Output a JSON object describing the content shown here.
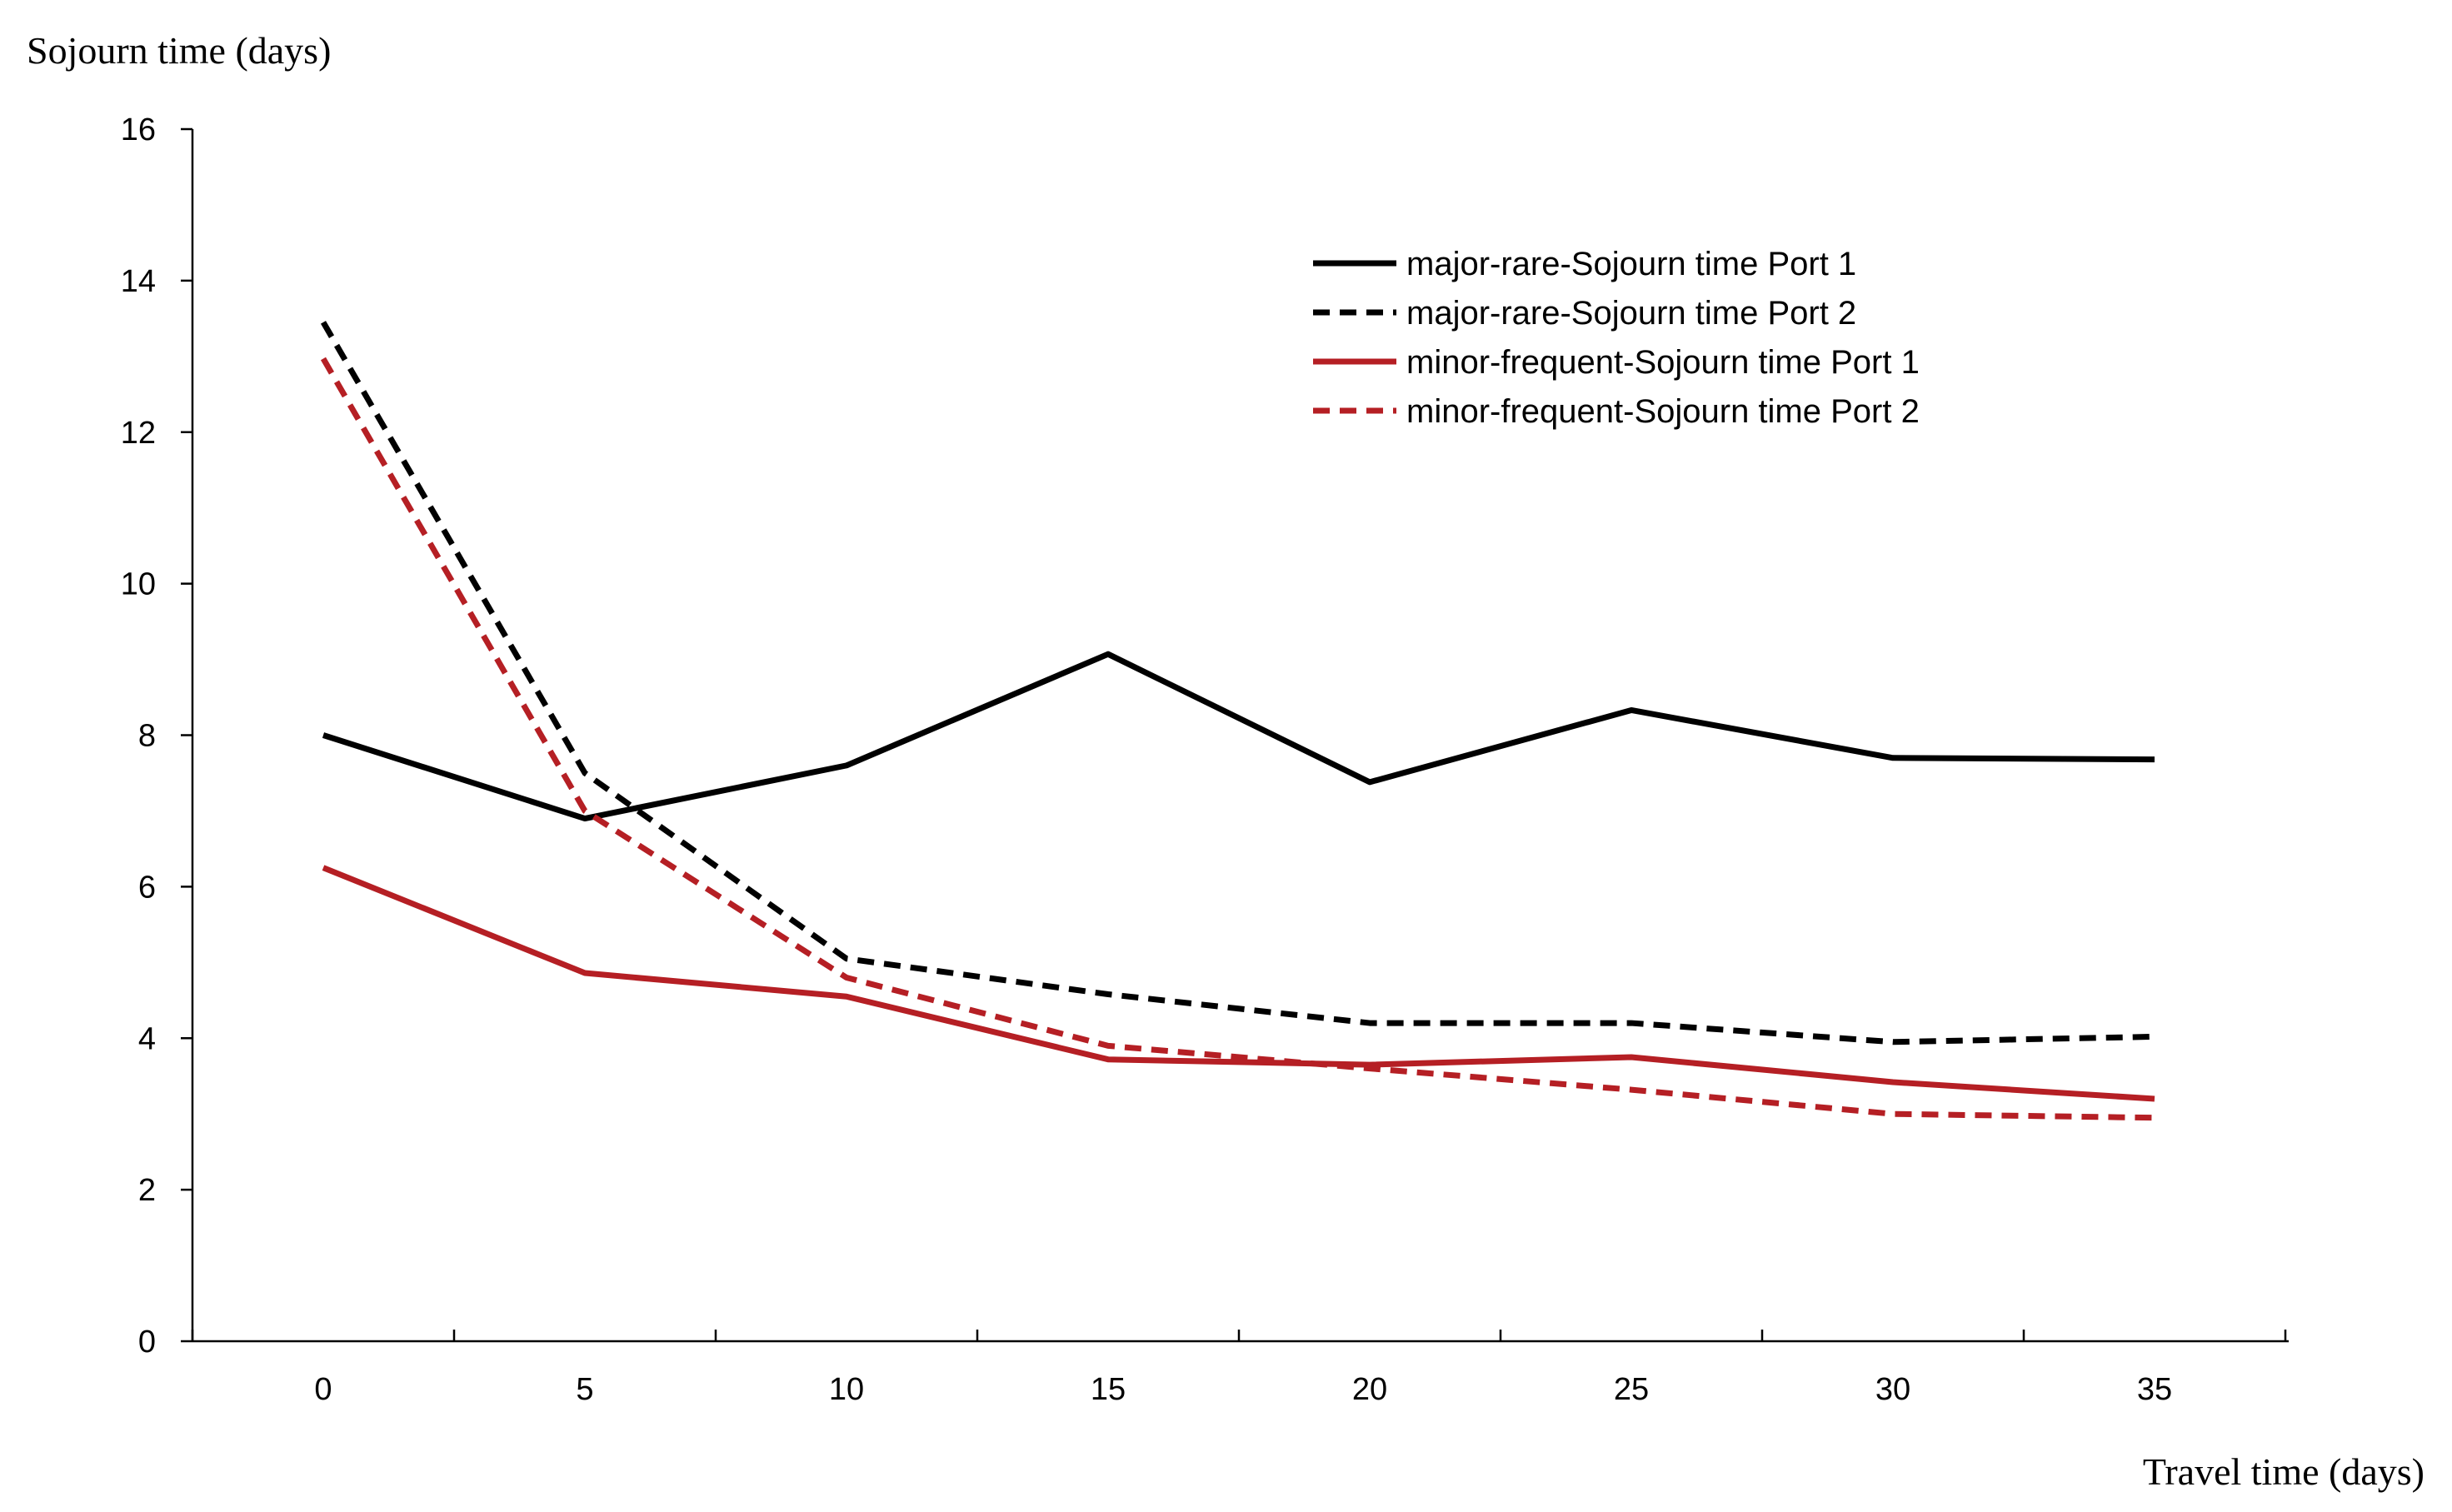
{
  "chart_data": {
    "type": "line",
    "title": "",
    "xlabel": "Travel time (days)",
    "ylabel": "Sojourn time (days)",
    "x": [
      0,
      5,
      10,
      15,
      20,
      25,
      30,
      35
    ],
    "xticks": [
      "0",
      "5",
      "10",
      "15",
      "20",
      "25",
      "30",
      "35"
    ],
    "yticks": [
      "0",
      "2",
      "4",
      "6",
      "8",
      "10",
      "12",
      "14",
      "16"
    ],
    "ylim": [
      0,
      16
    ],
    "grid": false,
    "legend_position": "top-right",
    "series": [
      {
        "name": "major-rare-Sojourn time Port 1",
        "color": "#000000",
        "style": "solid",
        "values": [
          8.0,
          6.9,
          7.6,
          9.07,
          7.38,
          8.33,
          7.7,
          7.68
        ]
      },
      {
        "name": "major-rare-Sojourn time Port 2",
        "color": "#000000",
        "style": "dashed",
        "values": [
          13.45,
          7.5,
          5.05,
          4.58,
          4.2,
          4.2,
          3.95,
          4.02
        ]
      },
      {
        "name": "minor-frequent-Sojourn time Port 1",
        "color": "#b51f24",
        "style": "solid",
        "values": [
          6.25,
          4.86,
          4.55,
          3.72,
          3.65,
          3.75,
          3.42,
          3.2
        ]
      },
      {
        "name": "minor-frequent-Sojourn time Port 2",
        "color": "#b51f24",
        "style": "dashed",
        "values": [
          12.97,
          7.0,
          4.8,
          3.9,
          3.6,
          3.32,
          3.0,
          2.95
        ]
      }
    ]
  }
}
